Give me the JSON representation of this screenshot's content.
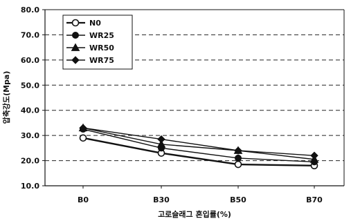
{
  "chart_data": {
    "type": "line",
    "title": "",
    "xlabel": "고로슬래그 혼입률(%)",
    "ylabel": "압축강도(Mpa)",
    "categories": [
      "B0",
      "B30",
      "B50",
      "B70"
    ],
    "ylim": [
      10,
      80
    ],
    "yticks": [
      "10.0",
      "20.0",
      "30.0",
      "40.0",
      "50.0",
      "60.0",
      "70.0",
      "80.0"
    ],
    "grid": "horizontal-dashed",
    "legend_position": "top-left",
    "series": [
      {
        "name": "N0",
        "marker": "circle-open",
        "values": [
          29.0,
          23.0,
          18.5,
          18.0
        ]
      },
      {
        "name": "WR25",
        "marker": "circle-filled",
        "values": [
          32.5,
          25.0,
          21.0,
          19.5
        ]
      },
      {
        "name": "WR50",
        "marker": "triangle-filled",
        "values": [
          33.0,
          26.5,
          24.0,
          20.5
        ]
      },
      {
        "name": "WR75",
        "marker": "diamond-filled",
        "values": [
          33.0,
          28.5,
          24.0,
          22.0
        ]
      }
    ],
    "line_color": "#111111"
  }
}
